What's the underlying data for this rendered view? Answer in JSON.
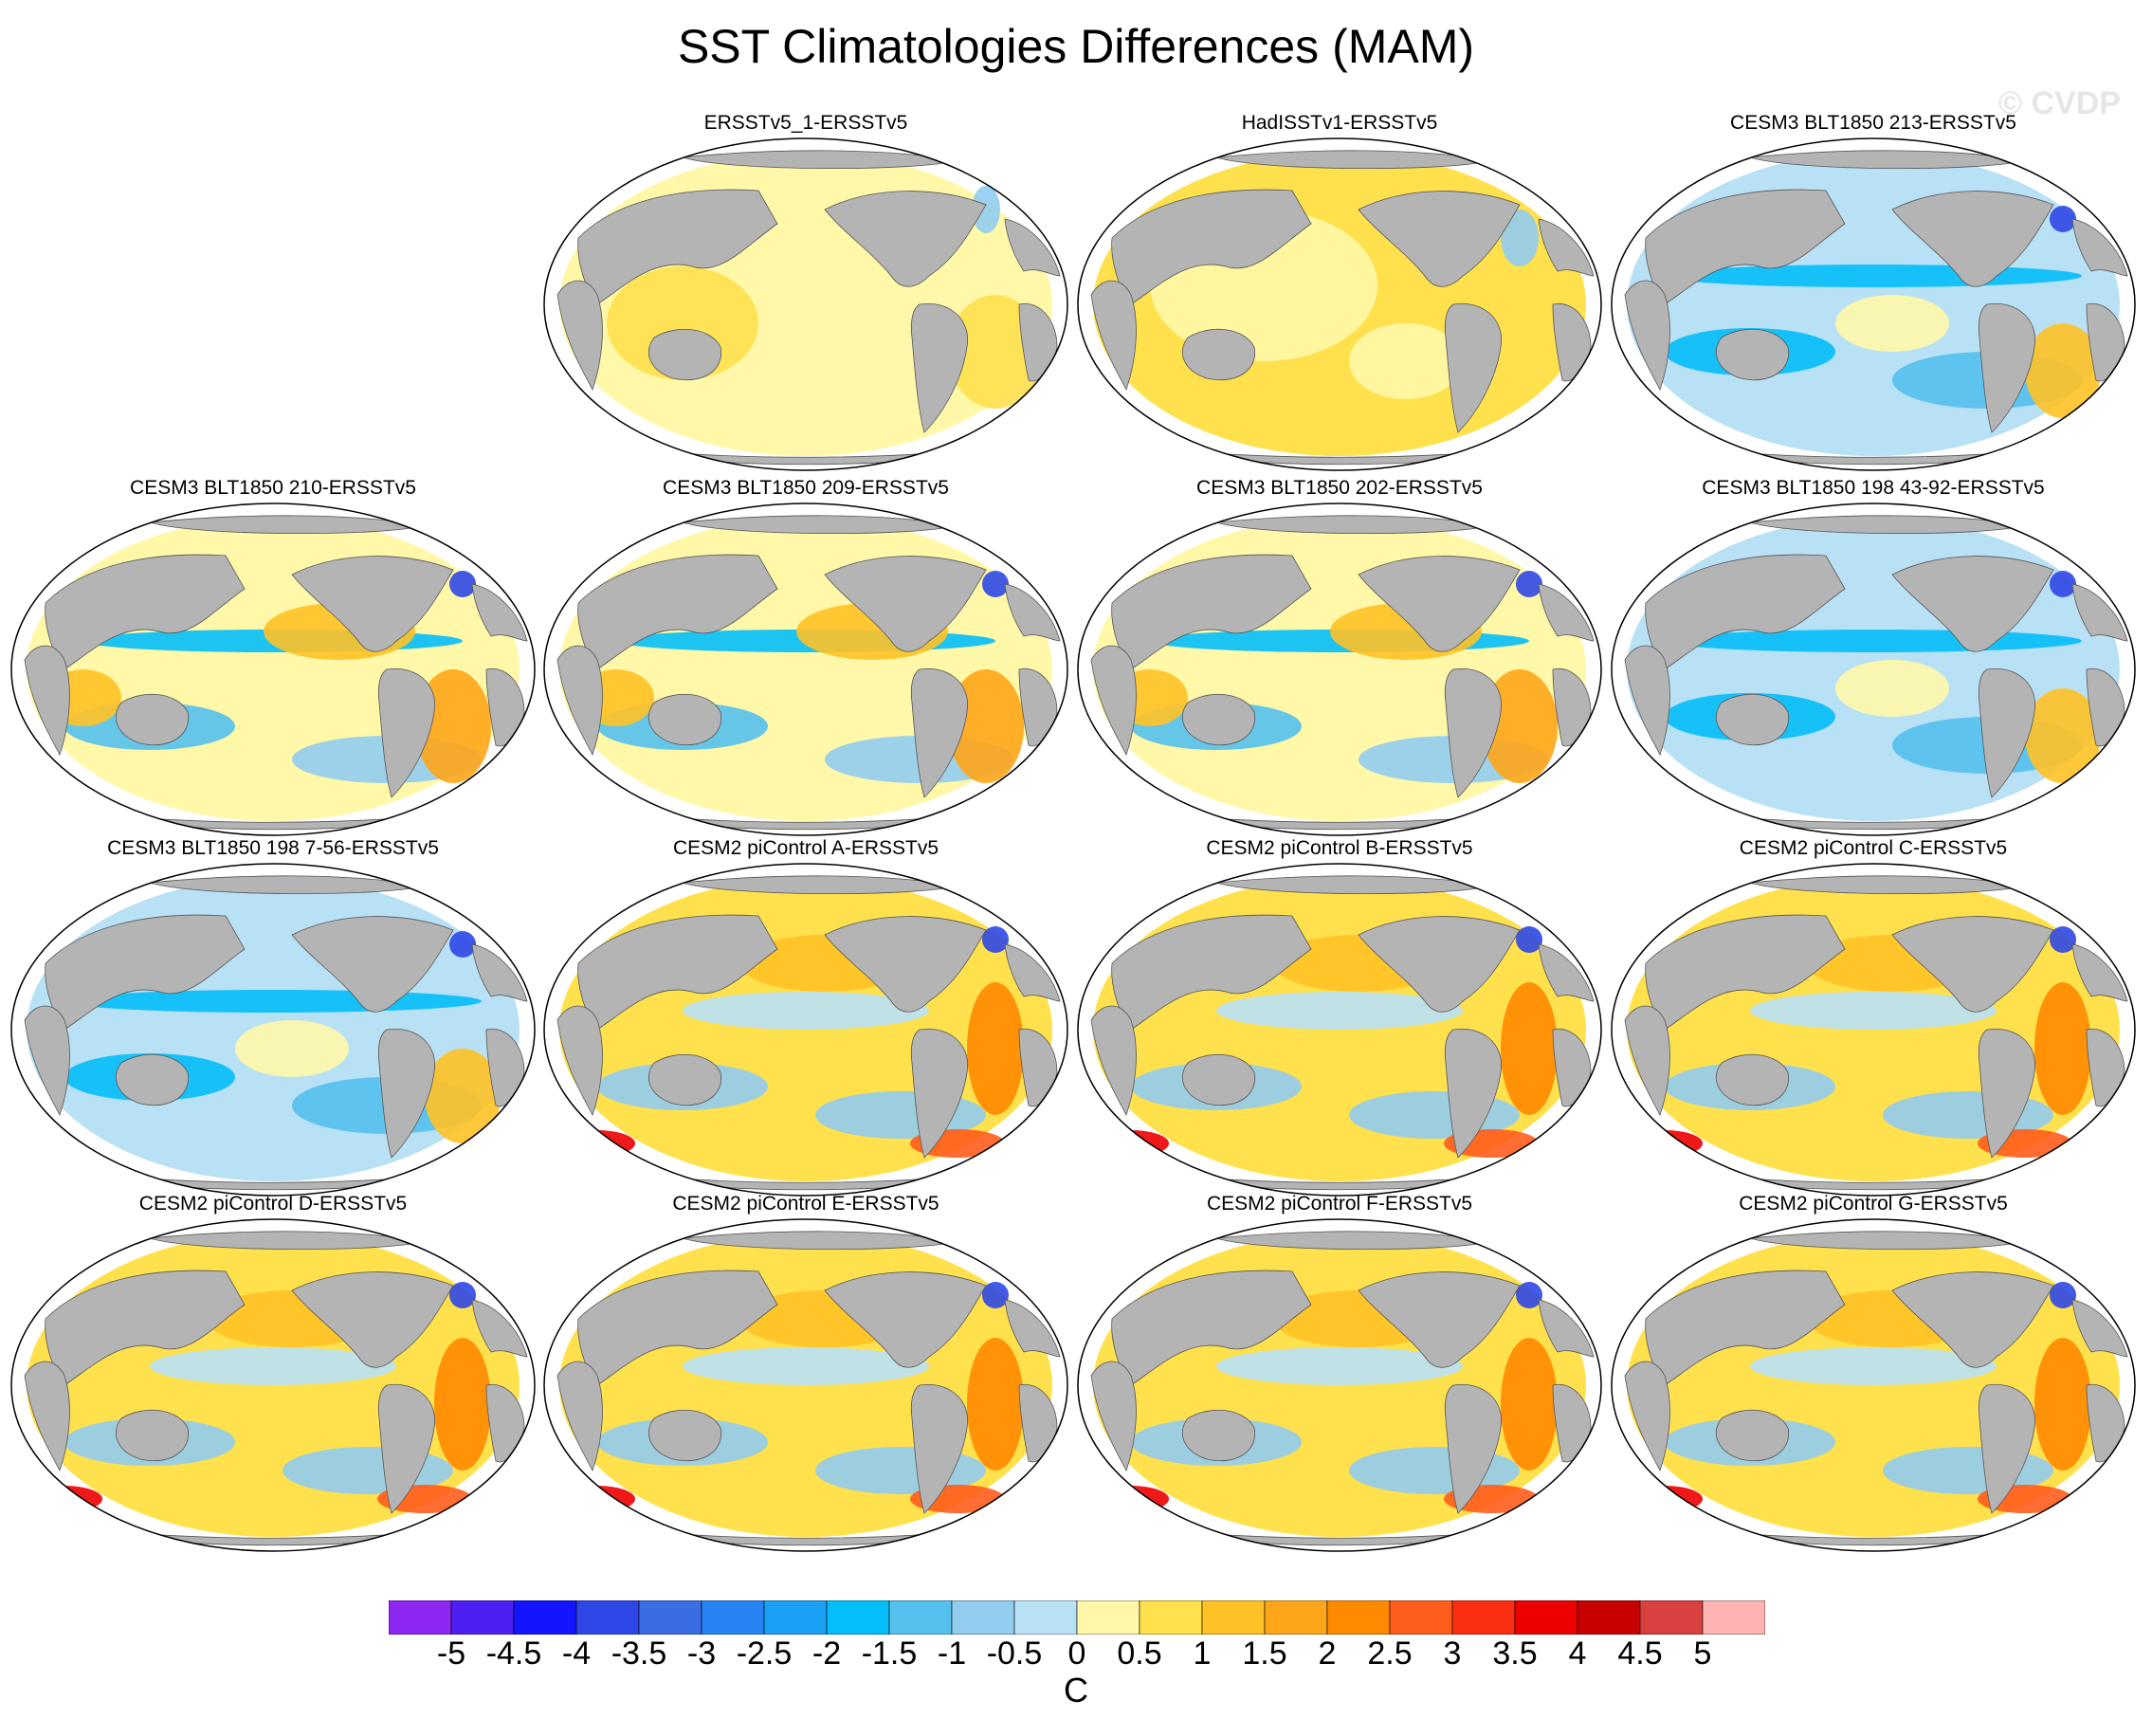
{
  "title": "SST Climatologies Differences (MAM)",
  "watermark": "© CVDP",
  "panels": [
    {
      "label": "",
      "pattern": "empty"
    },
    {
      "label": "ERSSTv5_1-ERSSTv5",
      "pattern": "flat"
    },
    {
      "label": "HadISSTv1-ERSSTv5",
      "pattern": "flat2"
    },
    {
      "label": "CESM3 BLT1850 213-ERSSTv5",
      "pattern": "cool"
    },
    {
      "label": "CESM3 BLT1850 210-ERSSTv5",
      "pattern": "mixed"
    },
    {
      "label": "CESM3 BLT1850 209-ERSSTv5",
      "pattern": "mixed"
    },
    {
      "label": "CESM3 BLT1850 202-ERSSTv5",
      "pattern": "mixed"
    },
    {
      "label": "CESM3 BLT1850 198 43-92-ERSSTv5",
      "pattern": "cool"
    },
    {
      "label": "CESM3 BLT1850 198 7-56-ERSSTv5",
      "pattern": "cool"
    },
    {
      "label": "CESM2 piControl A-ERSSTv5",
      "pattern": "warm"
    },
    {
      "label": "CESM2 piControl B-ERSSTv5",
      "pattern": "warm"
    },
    {
      "label": "CESM2 piControl C-ERSSTv5",
      "pattern": "warm"
    },
    {
      "label": "CESM2 piControl D-ERSSTv5",
      "pattern": "warm"
    },
    {
      "label": "CESM2 piControl E-ERSSTv5",
      "pattern": "warm"
    },
    {
      "label": "CESM2 piControl F-ERSSTv5",
      "pattern": "warm"
    },
    {
      "label": "CESM2 piControl G-ERSSTv5",
      "pattern": "warm"
    }
  ],
  "colorbar": {
    "unit": "C",
    "ticks": [
      "-5",
      "-4.5",
      "-4",
      "-3.5",
      "-3",
      "-2.5",
      "-2",
      "-1.5",
      "-1",
      "-0.5",
      "0",
      "0.5",
      "1",
      "1.5",
      "2",
      "2.5",
      "3",
      "3.5",
      "4",
      "4.5",
      "5"
    ],
    "colors": [
      "#8c26f0",
      "#4d1ff2",
      "#1414ff",
      "#2f47e6",
      "#3a6ce4",
      "#2583f4",
      "#1aa0f5",
      "#04bef9",
      "#55c0ee",
      "#92ccef",
      "#b9e1f6",
      "#fff8a8",
      "#ffe04d",
      "#ffc226",
      "#ffa51a",
      "#ff8a00",
      "#ff5d1c",
      "#fb2d12",
      "#ed0000",
      "#c90000",
      "#d94040",
      "#ffb3b3"
    ]
  },
  "colors": {
    "land": "#b4b4b4",
    "ocean_neutral": "#fff8a8"
  }
}
